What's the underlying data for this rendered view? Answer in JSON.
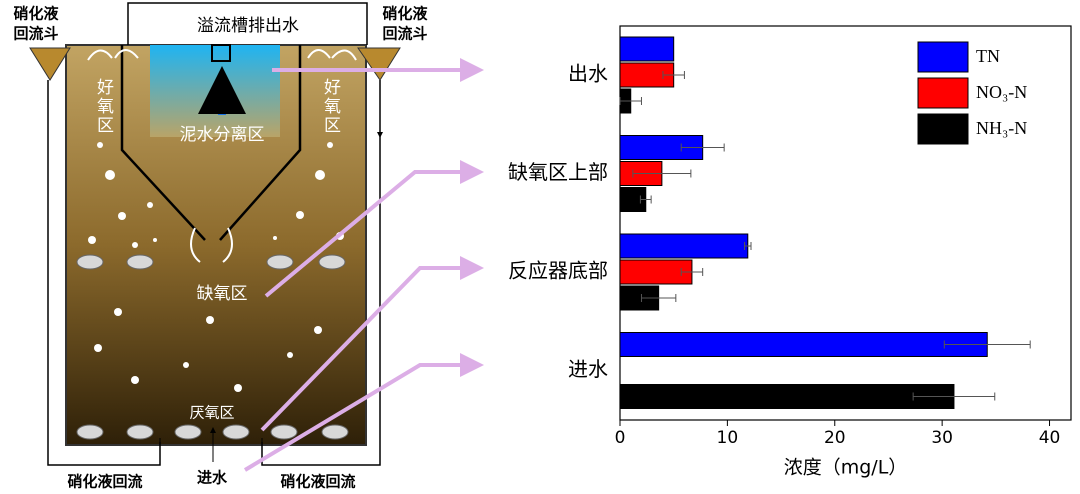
{
  "diagram": {
    "return_hopper_left": [
      "硝化液",
      "回流斗"
    ],
    "return_hopper_right": [
      "硝化液",
      "回流斗"
    ],
    "overflow": "溢流槽排出水",
    "aerobic_left": "好氧区",
    "aerobic_right": "好氧区",
    "separation": "泥水分离区",
    "anoxic": "缺氧区",
    "anaerobic": "厌氧区",
    "inlet": "进水",
    "return_left": "硝化液回流",
    "return_right": "硝化液回流"
  },
  "chart_data": {
    "type": "hbar",
    "categories": [
      "出水",
      "缺氧区上部",
      "反应器底部",
      "进水"
    ],
    "series": [
      {
        "name": "TN",
        "color": "#0000ff",
        "values": [
          5.0,
          7.7,
          11.9,
          34.2
        ],
        "errors": [
          0,
          2.0,
          0.3,
          4.0
        ]
      },
      {
        "name": "NO₃-N",
        "color": "#ff0000",
        "values": [
          5.0,
          3.9,
          6.7,
          null
        ],
        "errors": [
          1.0,
          2.7,
          1.0,
          null
        ]
      },
      {
        "name": "NH₃-N",
        "color": "#000000",
        "values": [
          1.0,
          2.4,
          3.6,
          31.1
        ],
        "errors": [
          1.0,
          0.5,
          1.6,
          3.8
        ]
      }
    ],
    "xlabel": "浓度（mg/L）",
    "xlim": [
      0,
      42
    ],
    "xticks": [
      0,
      10,
      20,
      30,
      40
    ],
    "legend": "upper right"
  }
}
